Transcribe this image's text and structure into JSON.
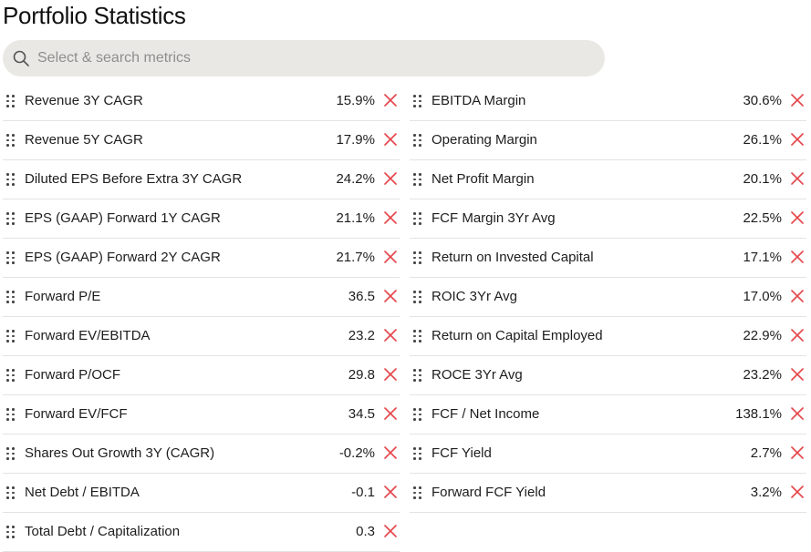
{
  "page": {
    "title": "Portfolio Statistics"
  },
  "search": {
    "placeholder": "Select & search metrics",
    "icon": "search-icon"
  },
  "colors": {
    "remove_icon": "#e5484d",
    "search_bg": "#e9e8e4",
    "divider": "#e3e3e3"
  },
  "metrics_left": [
    {
      "label": "Revenue 3Y CAGR",
      "value": "15.9%"
    },
    {
      "label": "Revenue 5Y CAGR",
      "value": "17.9%"
    },
    {
      "label": "Diluted EPS Before Extra 3Y CAGR",
      "value": "24.2%"
    },
    {
      "label": "EPS (GAAP) Forward 1Y CAGR",
      "value": "21.1%"
    },
    {
      "label": "EPS (GAAP) Forward 2Y CAGR",
      "value": "21.7%"
    },
    {
      "label": "Forward P/E",
      "value": "36.5"
    },
    {
      "label": "Forward EV/EBITDA",
      "value": "23.2"
    },
    {
      "label": "Forward P/OCF",
      "value": "29.8"
    },
    {
      "label": "Forward EV/FCF",
      "value": "34.5"
    },
    {
      "label": "Shares Out Growth 3Y (CAGR)",
      "value": "-0.2%"
    },
    {
      "label": "Net Debt / EBITDA",
      "value": "-0.1"
    },
    {
      "label": "Total Debt / Capitalization",
      "value": "0.3"
    }
  ],
  "metrics_right": [
    {
      "label": "EBITDA Margin",
      "value": "30.6%"
    },
    {
      "label": "Operating Margin",
      "value": "26.1%"
    },
    {
      "label": "Net Profit Margin",
      "value": "20.1%"
    },
    {
      "label": "FCF Margin 3Yr Avg",
      "value": "22.5%"
    },
    {
      "label": "Return on Invested Capital",
      "value": "17.1%"
    },
    {
      "label": "ROIC 3Yr Avg",
      "value": "17.0%"
    },
    {
      "label": "Return on Capital Employed",
      "value": "22.9%"
    },
    {
      "label": "ROCE 3Yr Avg",
      "value": "23.2%"
    },
    {
      "label": "FCF / Net Income",
      "value": "138.1%"
    },
    {
      "label": "FCF Yield",
      "value": "2.7%"
    },
    {
      "label": "Forward FCF Yield",
      "value": "3.2%"
    }
  ]
}
